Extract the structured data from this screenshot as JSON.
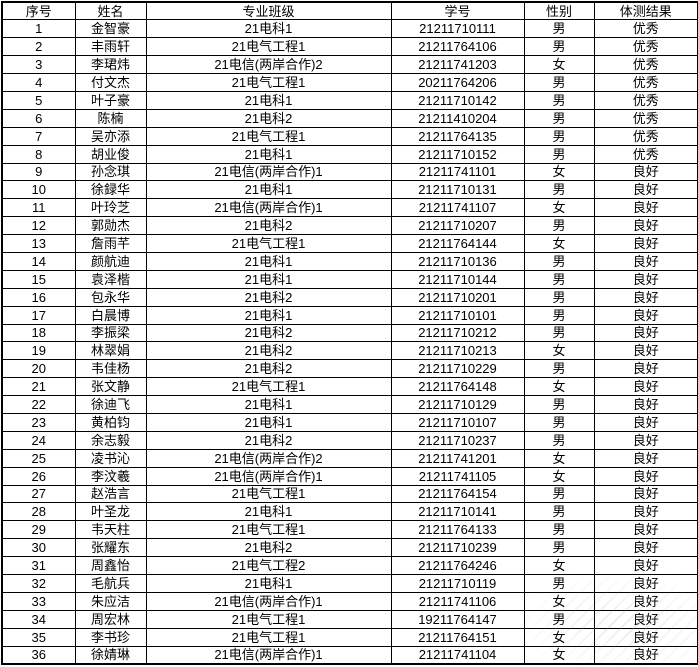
{
  "colors": {
    "border": "#000000",
    "text": "#000000",
    "background": "#ffffff",
    "watermark": "#9a9a9a"
  },
  "table": {
    "headers": [
      "序号",
      "姓名",
      "专业班级",
      "学号",
      "性别",
      "体测结果"
    ],
    "rows": [
      {
        "no": "1",
        "name": "金智豪",
        "class": "21电科1",
        "student_id": "21211710111",
        "gender": "男",
        "result": "优秀"
      },
      {
        "no": "2",
        "name": "丰雨轩",
        "class": "21电气工程1",
        "student_id": "21211764106",
        "gender": "男",
        "result": "优秀"
      },
      {
        "no": "3",
        "name": "李珺炜",
        "class": "21电信(两岸合作)2",
        "student_id": "21211741203",
        "gender": "女",
        "result": "优秀"
      },
      {
        "no": "4",
        "name": "付文杰",
        "class": "21电气工程1",
        "student_id": "20211764206",
        "gender": "男",
        "result": "优秀"
      },
      {
        "no": "5",
        "name": "叶子豪",
        "class": "21电科1",
        "student_id": "21211710142",
        "gender": "男",
        "result": "优秀"
      },
      {
        "no": "6",
        "name": "陈楠",
        "class": "21电科2",
        "student_id": "21211410204",
        "gender": "男",
        "result": "优秀"
      },
      {
        "no": "7",
        "name": "吴亦添",
        "class": "21电气工程1",
        "student_id": "21211764135",
        "gender": "男",
        "result": "优秀"
      },
      {
        "no": "8",
        "name": "胡业俊",
        "class": "21电科1",
        "student_id": "21211710152",
        "gender": "男",
        "result": "优秀"
      },
      {
        "no": "9",
        "name": "孙念琪",
        "class": "21电信(两岸合作)1",
        "student_id": "21211741101",
        "gender": "女",
        "result": "良好"
      },
      {
        "no": "10",
        "name": "徐録华",
        "class": "21电科1",
        "student_id": "21211710131",
        "gender": "男",
        "result": "良好"
      },
      {
        "no": "11",
        "name": "叶玲芝",
        "class": "21电信(两岸合作)1",
        "student_id": "21211741107",
        "gender": "女",
        "result": "良好"
      },
      {
        "no": "12",
        "name": "郭勋杰",
        "class": "21电科2",
        "student_id": "21211710207",
        "gender": "男",
        "result": "良好"
      },
      {
        "no": "13",
        "name": "詹雨芊",
        "class": "21电气工程1",
        "student_id": "21211764144",
        "gender": "女",
        "result": "良好"
      },
      {
        "no": "14",
        "name": "颜航迪",
        "class": "21电科1",
        "student_id": "21211710136",
        "gender": "男",
        "result": "良好"
      },
      {
        "no": "15",
        "name": "袁泽楷",
        "class": "21电科1",
        "student_id": "21211710144",
        "gender": "男",
        "result": "良好"
      },
      {
        "no": "16",
        "name": "包永华",
        "class": "21电科2",
        "student_id": "21211710201",
        "gender": "男",
        "result": "良好"
      },
      {
        "no": "17",
        "name": "白晨博",
        "class": "21电科1",
        "student_id": "21211710101",
        "gender": "男",
        "result": "良好"
      },
      {
        "no": "18",
        "name": "李振梁",
        "class": "21电科2",
        "student_id": "21211710212",
        "gender": "男",
        "result": "良好"
      },
      {
        "no": "19",
        "name": "林翠娟",
        "class": "21电科2",
        "student_id": "21211710213",
        "gender": "女",
        "result": "良好"
      },
      {
        "no": "20",
        "name": "韦佳杨",
        "class": "21电科2",
        "student_id": "21211710229",
        "gender": "男",
        "result": "良好"
      },
      {
        "no": "21",
        "name": "张文静",
        "class": "21电气工程1",
        "student_id": "21211764148",
        "gender": "女",
        "result": "良好"
      },
      {
        "no": "22",
        "name": "徐迪飞",
        "class": "21电科1",
        "student_id": "21211710129",
        "gender": "男",
        "result": "良好"
      },
      {
        "no": "23",
        "name": "黄柏钧",
        "class": "21电科1",
        "student_id": "21211710107",
        "gender": "男",
        "result": "良好"
      },
      {
        "no": "24",
        "name": "余志毅",
        "class": "21电科2",
        "student_id": "21211710237",
        "gender": "男",
        "result": "良好"
      },
      {
        "no": "25",
        "name": "凌书沁",
        "class": "21电信(两岸合作)2",
        "student_id": "21211741201",
        "gender": "女",
        "result": "良好"
      },
      {
        "no": "26",
        "name": "李汶羲",
        "class": "21电信(两岸合作)1",
        "student_id": "21211741105",
        "gender": "女",
        "result": "良好"
      },
      {
        "no": "27",
        "name": "赵浩言",
        "class": "21电气工程1",
        "student_id": "21211764154",
        "gender": "男",
        "result": "良好"
      },
      {
        "no": "28",
        "name": "叶圣龙",
        "class": "21电科1",
        "student_id": "21211710141",
        "gender": "男",
        "result": "良好"
      },
      {
        "no": "29",
        "name": "韦天柱",
        "class": "21电气工程1",
        "student_id": "21211764133",
        "gender": "男",
        "result": "良好"
      },
      {
        "no": "30",
        "name": "张耀东",
        "class": "21电科2",
        "student_id": "21211710239",
        "gender": "男",
        "result": "良好"
      },
      {
        "no": "31",
        "name": "周鑫怡",
        "class": "21电气工程2",
        "student_id": "21211764246",
        "gender": "女",
        "result": "良好"
      },
      {
        "no": "32",
        "name": "毛航兵",
        "class": "21电科1",
        "student_id": "21211710119",
        "gender": "男",
        "result": "良好"
      },
      {
        "no": "33",
        "name": "朱应洁",
        "class": "21电信(两岸合作)1",
        "student_id": "21211741106",
        "gender": "女",
        "result": "良好"
      },
      {
        "no": "34",
        "name": "周宏林",
        "class": "21电气工程1",
        "student_id": "19211764147",
        "gender": "男",
        "result": "良好"
      },
      {
        "no": "35",
        "name": "李书珍",
        "class": "21电气工程1",
        "student_id": "21211764151",
        "gender": "女",
        "result": "良好"
      },
      {
        "no": "36",
        "name": "徐婧琳",
        "class": "21电信(两岸合作)1",
        "student_id": "21211741104",
        "gender": "女",
        "result": "良好"
      }
    ]
  }
}
